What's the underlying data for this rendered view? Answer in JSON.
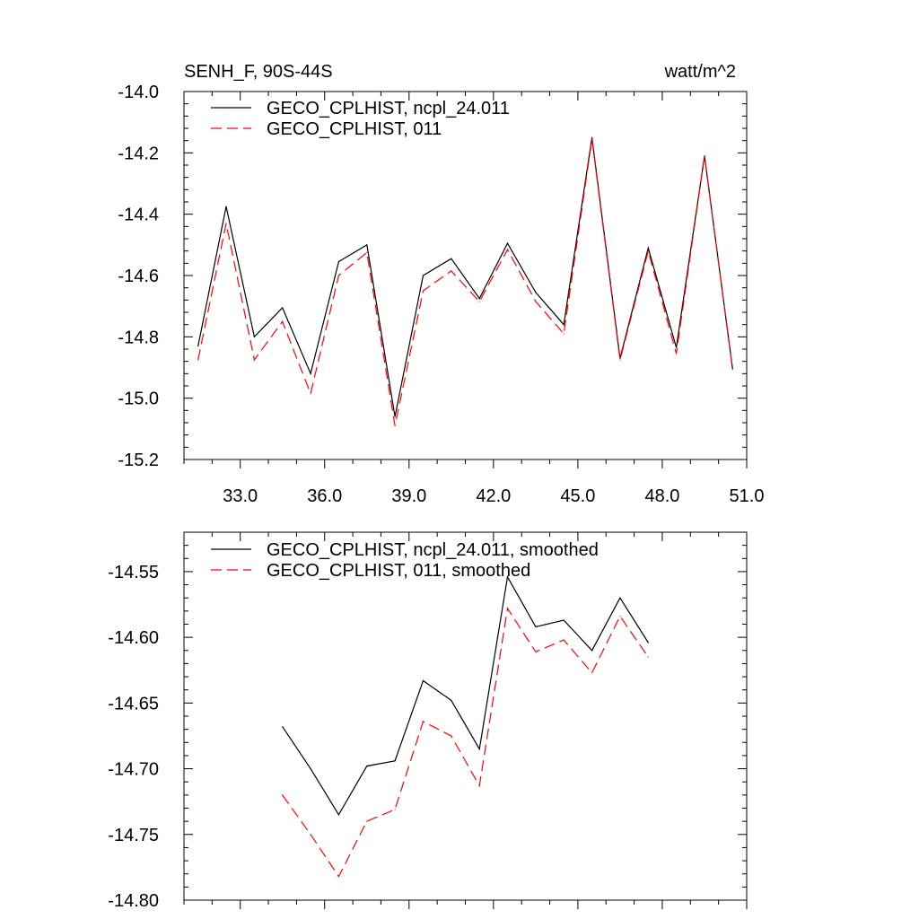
{
  "chart_data": [
    {
      "type": "line",
      "title": "SENH_F, 90S-44S",
      "units": "watt/m^2",
      "xlim": [
        31.0,
        51.0
      ],
      "ylim": [
        -15.2,
        -14.0
      ],
      "x_ticks": [
        33.0,
        36.0,
        39.0,
        42.0,
        45.0,
        48.0,
        51.0
      ],
      "x_tick_labels": [
        "33.0",
        "36.0",
        "39.0",
        "42.0",
        "45.0",
        "48.0",
        "51.0"
      ],
      "y_ticks": [
        -15.2,
        -15.0,
        -14.8,
        -14.6,
        -14.4,
        -14.2,
        -14.0
      ],
      "y_tick_labels": [
        "-15.2",
        "-15.0",
        "-14.8",
        "-14.6",
        "-14.4",
        "-14.2",
        "-14.0"
      ],
      "x": [
        31.5,
        32.5,
        33.5,
        34.5,
        35.5,
        36.5,
        37.5,
        38.5,
        39.5,
        40.5,
        41.5,
        42.5,
        43.5,
        44.5,
        45.5,
        46.5,
        47.5,
        48.5,
        49.5,
        50.5
      ],
      "series": [
        {
          "name": "GECO_CPLHIST, ncpl_24.011",
          "color": "#000000",
          "dash": "solid",
          "values": [
            -14.83,
            -14.375,
            -14.8,
            -14.705,
            -14.92,
            -14.555,
            -14.5,
            -15.06,
            -14.6,
            -14.545,
            -14.675,
            -14.495,
            -14.655,
            -14.76,
            -14.15,
            -14.87,
            -14.51,
            -14.835,
            -14.21,
            -14.905
          ]
        },
        {
          "name": "GECO_CPLHIST, 011",
          "color": "#ff0000",
          "dash": "dashed",
          "values": [
            -14.875,
            -14.43,
            -14.875,
            -14.75,
            -14.985,
            -14.6,
            -14.525,
            -15.09,
            -14.65,
            -14.585,
            -14.685,
            -14.515,
            -14.685,
            -14.79,
            -14.155,
            -14.875,
            -14.52,
            -14.855,
            -14.21,
            -14.905
          ]
        }
      ]
    },
    {
      "type": "line",
      "xlim": [
        31.0,
        51.0
      ],
      "ylim": [
        -14.8,
        -14.52
      ],
      "x_ticks": [
        33.0,
        36.0,
        39.0,
        42.0,
        45.0,
        48.0,
        51.0
      ],
      "y_ticks": [
        -14.8,
        -14.75,
        -14.7,
        -14.65,
        -14.6,
        -14.55
      ],
      "y_tick_labels": [
        "-14.80",
        "-14.75",
        "-14.70",
        "-14.65",
        "-14.60",
        "-14.55"
      ],
      "x": [
        34.5,
        35.5,
        36.5,
        37.5,
        38.5,
        39.5,
        40.5,
        41.5,
        42.5,
        43.5,
        44.5,
        45.5,
        46.5,
        47.5
      ],
      "series": [
        {
          "name": "GECO_CPLHIST, ncpl_24.011, smoothed",
          "color": "#000000",
          "dash": "solid",
          "values": [
            -14.668,
            -14.7,
            -14.735,
            -14.698,
            -14.694,
            -14.633,
            -14.648,
            -14.685,
            -14.554,
            -14.592,
            -14.587,
            -14.61,
            -14.57,
            -14.604
          ]
        },
        {
          "name": "GECO_CPLHIST, 011, smoothed",
          "color": "#ff0000",
          "dash": "dashed",
          "values": [
            -14.72,
            -14.75,
            -14.782,
            -14.74,
            -14.731,
            -14.664,
            -14.675,
            -14.713,
            -14.578,
            -14.611,
            -14.602,
            -14.627,
            -14.584,
            -14.615
          ]
        }
      ]
    }
  ]
}
